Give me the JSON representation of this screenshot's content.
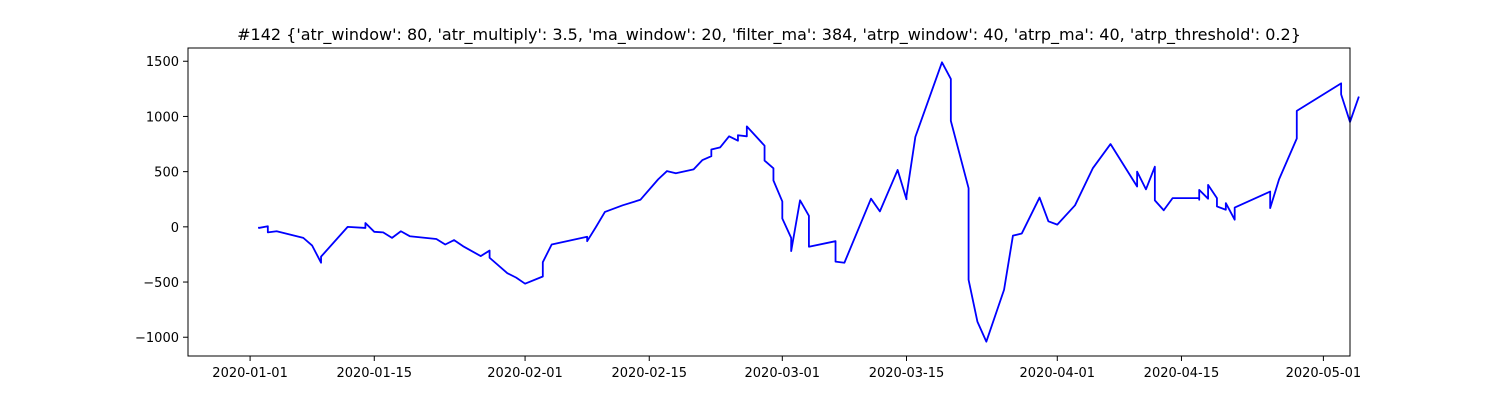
{
  "chart_data": {
    "type": "line",
    "title": "#142 {'atr_window': 80, 'atr_multiply': 3.5, 'ma_window': 20, 'filter_ma': 384, 'atrp_window': 40, 'atrp_ma': 40, 'atrp_threshold': 0.2}",
    "xlabel": "",
    "ylabel": "",
    "xlim": [
      "2019-12-25",
      "2020-05-04"
    ],
    "ylim": [
      -1170,
      1620
    ],
    "grid": false,
    "legend": "none",
    "xticks": [
      {
        "date": "2020-01-01",
        "label": "2020-01-01"
      },
      {
        "date": "2020-01-15",
        "label": "2020-01-15"
      },
      {
        "date": "2020-02-01",
        "label": "2020-02-01"
      },
      {
        "date": "2020-02-15",
        "label": "2020-02-15"
      },
      {
        "date": "2020-03-01",
        "label": "2020-03-01"
      },
      {
        "date": "2020-03-15",
        "label": "2020-03-15"
      },
      {
        "date": "2020-04-01",
        "label": "2020-04-01"
      },
      {
        "date": "2020-04-15",
        "label": "2020-04-15"
      },
      {
        "date": "2020-05-01",
        "label": "2020-05-01"
      }
    ],
    "yticks": [
      {
        "value": 1500,
        "label": "1500"
      },
      {
        "value": 1000,
        "label": "1000"
      },
      {
        "value": 500,
        "label": "500"
      },
      {
        "value": 0,
        "label": "0"
      },
      {
        "value": -500,
        "label": "−500"
      },
      {
        "value": -1000,
        "label": "−1000"
      }
    ],
    "series": [
      {
        "color": "#0000ff",
        "points": [
          [
            "2020-01-02",
            0
          ],
          [
            "2020-01-02",
            -10
          ],
          [
            "2020-01-03",
            5
          ],
          [
            "2020-01-03",
            -40
          ],
          [
            "2020-01-03",
            -20
          ],
          [
            "2020-01-03",
            -50
          ],
          [
            "2020-01-04",
            -40
          ],
          [
            "2020-01-07",
            -100
          ],
          [
            "2020-01-08",
            -170
          ],
          [
            "2020-01-09",
            -325
          ],
          [
            "2020-01-09",
            -270
          ],
          [
            "2020-01-12",
            0
          ],
          [
            "2020-01-14",
            -10
          ],
          [
            "2020-01-14",
            35
          ],
          [
            "2020-01-15",
            -45
          ],
          [
            "2020-01-16",
            -50
          ],
          [
            "2020-01-17",
            -100
          ],
          [
            "2020-01-18",
            -40
          ],
          [
            "2020-01-19",
            -85
          ],
          [
            "2020-01-22",
            -110
          ],
          [
            "2020-01-23",
            -160
          ],
          [
            "2020-01-24",
            -120
          ],
          [
            "2020-01-25",
            -175
          ],
          [
            "2020-01-27",
            -265
          ],
          [
            "2020-01-28",
            -215
          ],
          [
            "2020-01-28",
            -280
          ],
          [
            "2020-01-30",
            -420
          ],
          [
            "2020-01-31",
            -460
          ],
          [
            "2020-02-01",
            -515
          ],
          [
            "2020-02-03",
            -450
          ],
          [
            "2020-02-03",
            -320
          ],
          [
            "2020-02-04",
            -160
          ],
          [
            "2020-02-08",
            -90
          ],
          [
            "2020-02-08",
            -130
          ],
          [
            "2020-02-09",
            0
          ],
          [
            "2020-02-10",
            135
          ],
          [
            "2020-02-12",
            195
          ],
          [
            "2020-02-14",
            245
          ],
          [
            "2020-02-16",
            430
          ],
          [
            "2020-02-17",
            505
          ],
          [
            "2020-02-18",
            485
          ],
          [
            "2020-02-20",
            520
          ],
          [
            "2020-02-21",
            605
          ],
          [
            "2020-02-22",
            640
          ],
          [
            "2020-02-22",
            700
          ],
          [
            "2020-02-23",
            720
          ],
          [
            "2020-02-24",
            820
          ],
          [
            "2020-02-25",
            780
          ],
          [
            "2020-02-25",
            830
          ],
          [
            "2020-02-26",
            820
          ],
          [
            "2020-02-26",
            910
          ],
          [
            "2020-02-28",
            735
          ],
          [
            "2020-02-28",
            600
          ],
          [
            "2020-02-29",
            530
          ],
          [
            "2020-02-29",
            420
          ],
          [
            "2020-03-01",
            230
          ],
          [
            "2020-03-01",
            75
          ],
          [
            "2020-03-02",
            -100
          ],
          [
            "2020-03-02",
            -220
          ],
          [
            "2020-03-03",
            240
          ],
          [
            "2020-03-04",
            100
          ],
          [
            "2020-03-04",
            -180
          ],
          [
            "2020-03-07",
            -130
          ],
          [
            "2020-03-07",
            -315
          ],
          [
            "2020-03-08",
            -325
          ],
          [
            "2020-03-11",
            255
          ],
          [
            "2020-03-12",
            140
          ],
          [
            "2020-03-14",
            515
          ],
          [
            "2020-03-15",
            250
          ],
          [
            "2020-03-15",
            280
          ],
          [
            "2020-03-16",
            815
          ],
          [
            "2020-03-19",
            1490
          ],
          [
            "2020-03-20",
            1340
          ],
          [
            "2020-03-20",
            960
          ],
          [
            "2020-03-22",
            350
          ],
          [
            "2020-03-22",
            -480
          ],
          [
            "2020-03-23",
            -860
          ],
          [
            "2020-03-24",
            -1040
          ],
          [
            "2020-03-26",
            -570
          ],
          [
            "2020-03-27",
            -80
          ],
          [
            "2020-03-28",
            -60
          ],
          [
            "2020-03-30",
            265
          ],
          [
            "2020-03-31",
            50
          ],
          [
            "2020-04-01",
            20
          ],
          [
            "2020-04-03",
            195
          ],
          [
            "2020-04-05",
            530
          ],
          [
            "2020-04-07",
            750
          ],
          [
            "2020-04-10",
            365
          ],
          [
            "2020-04-10",
            500
          ],
          [
            "2020-04-11",
            340
          ],
          [
            "2020-04-12",
            545
          ],
          [
            "2020-04-12",
            240
          ],
          [
            "2020-04-13",
            150
          ],
          [
            "2020-04-14",
            260
          ],
          [
            "2020-04-17",
            260
          ],
          [
            "2020-04-17",
            245
          ],
          [
            "2020-04-17",
            335
          ],
          [
            "2020-04-18",
            255
          ],
          [
            "2020-04-18",
            380
          ],
          [
            "2020-04-19",
            260
          ],
          [
            "2020-04-19",
            185
          ],
          [
            "2020-04-20",
            155
          ],
          [
            "2020-04-20",
            215
          ],
          [
            "2020-04-21",
            65
          ],
          [
            "2020-04-21",
            175
          ],
          [
            "2020-04-25",
            320
          ],
          [
            "2020-04-25",
            170
          ],
          [
            "2020-04-26",
            430
          ],
          [
            "2020-04-28",
            800
          ],
          [
            "2020-04-28",
            1050
          ],
          [
            "2020-05-03",
            1300
          ],
          [
            "2020-05-03",
            1200
          ],
          [
            "2020-05-04",
            950
          ],
          [
            "2020-05-05",
            1180
          ]
        ]
      }
    ]
  }
}
